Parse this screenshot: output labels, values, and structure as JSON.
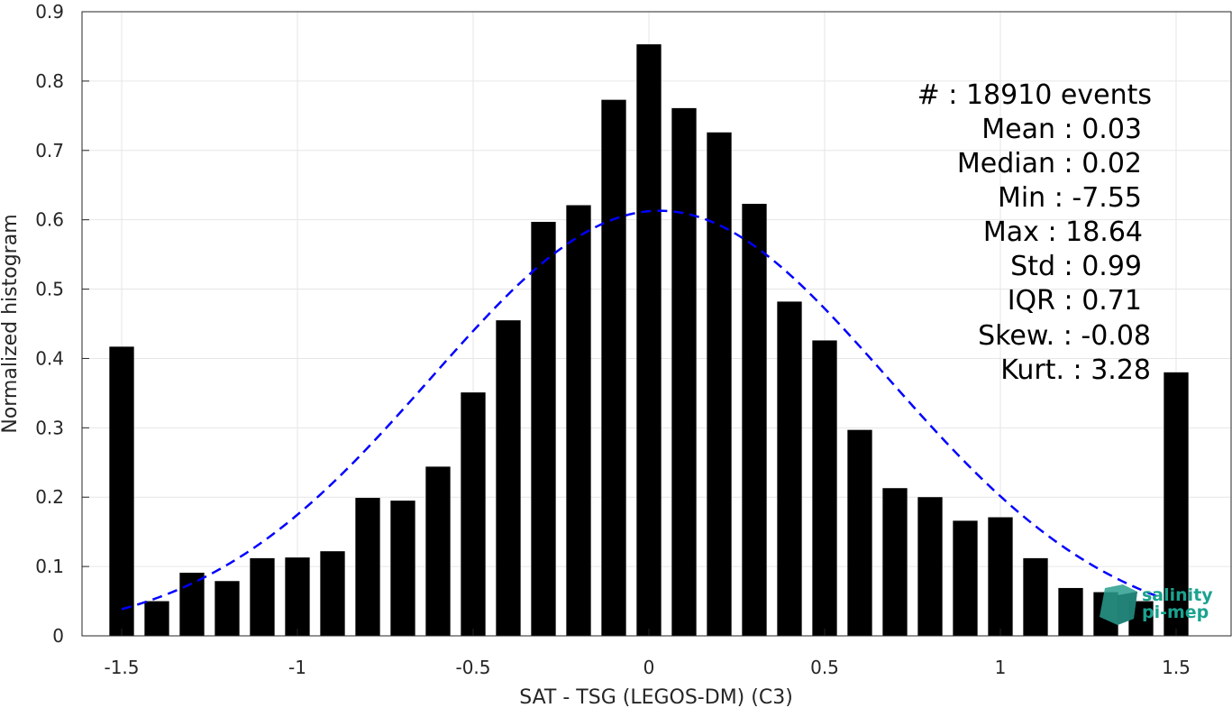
{
  "chart_data": {
    "type": "bar",
    "xlabel": "SAT - TSG (LEGOS-DM) (C3)",
    "ylabel": "Normalized histogram",
    "xlim": [
      -1.6,
      1.6
    ],
    "ylim": [
      0,
      0.9
    ],
    "xticks": [
      -1.5,
      -1,
      -0.5,
      0,
      0.5,
      1,
      1.5
    ],
    "xtick_labels": [
      "-1.5",
      "-1",
      "-0.5",
      "0",
      "0.5",
      "1",
      "1.5"
    ],
    "yticks": [
      0,
      0.1,
      0.2,
      0.3,
      0.4,
      0.5,
      0.6,
      0.7,
      0.8,
      0.9
    ],
    "ytick_labels": [
      "0",
      "0.1",
      "0.2",
      "0.3",
      "0.4",
      "0.5",
      "0.6",
      "0.7",
      "0.8",
      "0.9"
    ],
    "grid": true,
    "bar_color": "#000000",
    "bins": [
      -1.5,
      -1.4,
      -1.3,
      -1.2,
      -1.1,
      -1.0,
      -0.9,
      -0.8,
      -0.7,
      -0.6,
      -0.5,
      -0.4,
      -0.3,
      -0.2,
      -0.1,
      0.0,
      0.1,
      0.2,
      0.3,
      0.4,
      0.5,
      0.6,
      0.7,
      0.8,
      0.9,
      1.0,
      1.1,
      1.2,
      1.3,
      1.4,
      1.5
    ],
    "values": [
      0.417,
      0.05,
      0.091,
      0.079,
      0.112,
      0.113,
      0.122,
      0.199,
      0.195,
      0.244,
      0.351,
      0.455,
      0.597,
      0.621,
      0.773,
      0.853,
      0.761,
      0.726,
      0.623,
      0.482,
      0.426,
      0.297,
      0.213,
      0.2,
      0.166,
      0.171,
      0.112,
      0.069,
      0.063,
      0.05,
      0.38
    ],
    "fit_curve": {
      "style": "dashed",
      "color": "#0000ff",
      "mean": 0.03,
      "std": 0.65,
      "peak": 0.613,
      "x_range": [
        -1.5,
        1.45
      ]
    },
    "stats": {
      "events": "#  : 18910 events",
      "mean": "Mean : 0.03",
      "median": "Median : 0.02",
      "min": "Min : -7.55",
      "max": "Max : 18.64",
      "std": "Std : 0.99",
      "iqr": "IQR : 0.71",
      "skew": "Skew. : -0.08",
      "kurt": "Kurt. : 3.28"
    }
  },
  "logo": {
    "line1": "salinity",
    "line2": "pi-mep",
    "color": "#1aa38f"
  }
}
